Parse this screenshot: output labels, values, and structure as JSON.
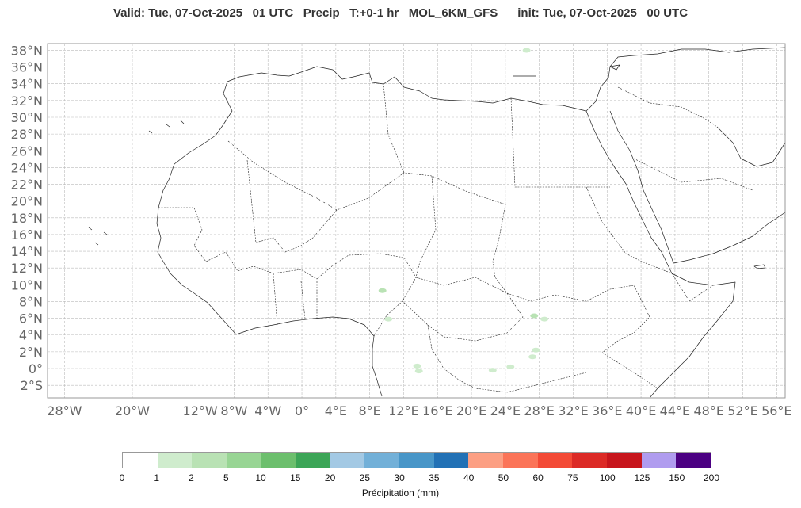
{
  "header": {
    "title": "Valid: Tue, 07-Oct-2025   01 UTC   Precip   T:+0-1 hr   MOL_6KM_GFS      init: Tue, 07-Oct-2025   00 UTC"
  },
  "map": {
    "lon_range": [
      -30,
      57
    ],
    "lat_range": [
      -3.5,
      38.8
    ],
    "lat_labels": [
      "38°N",
      "36°N",
      "34°N",
      "32°N",
      "30°N",
      "28°N",
      "26°N",
      "24°N",
      "22°N",
      "20°N",
      "18°N",
      "16°N",
      "14°N",
      "12°N",
      "10°N",
      "8°N",
      "6°N",
      "4°N",
      "2°N",
      "0°",
      "2°S"
    ],
    "lon_labels": [
      "28°W",
      "20°W",
      "12°W",
      "8°W",
      "4°W",
      "0°",
      "4°E",
      "8°E",
      "12°E",
      "16°E",
      "20°E",
      "24°E",
      "28°E",
      "32°E",
      "36°E",
      "40°E",
      "44°E",
      "48°E",
      "52°E",
      "56°E"
    ],
    "grid": true,
    "colors": {
      "coast": "#222222",
      "border": "#222222",
      "grid": "#bbbbbb",
      "frame": "#999999"
    }
  },
  "colorbar": {
    "label": "Précipitation (mm)",
    "ticks": [
      "0",
      "1",
      "2",
      "5",
      "10",
      "15",
      "20",
      "25",
      "30",
      "35",
      "40",
      "50",
      "60",
      "75",
      "100",
      "125",
      "150",
      "200"
    ],
    "colors": [
      "#ffffff",
      "#cfeccd",
      "#b9e2b4",
      "#98d594",
      "#6cbf6d",
      "#3ca557",
      "#a3c9e4",
      "#72b0d8",
      "#4896c8",
      "#2271b5",
      "#fc9f83",
      "#fb7458",
      "#f34a36",
      "#dc2a26",
      "#c7151c",
      "#b09cef",
      "#4b0082"
    ]
  },
  "precip_cells": [
    {
      "lon": 9.5,
      "lat": 9.3,
      "value": 2
    },
    {
      "lon": 10.2,
      "lat": 5.9,
      "value": 1
    },
    {
      "lon": 13.6,
      "lat": 0.3,
      "value": 1
    },
    {
      "lon": 13.8,
      "lat": -0.3,
      "value": 1
    },
    {
      "lon": 22.5,
      "lat": -0.2,
      "value": 1
    },
    {
      "lon": 24.6,
      "lat": 0.2,
      "value": 1
    },
    {
      "lon": 27.2,
      "lat": 1.4,
      "value": 1
    },
    {
      "lon": 27.6,
      "lat": 2.2,
      "value": 1
    },
    {
      "lon": 27.4,
      "lat": 6.3,
      "value": 2
    },
    {
      "lon": 28.6,
      "lat": 5.9,
      "value": 1
    },
    {
      "lon": 26.5,
      "lat": 38.0,
      "value": 1
    }
  ]
}
